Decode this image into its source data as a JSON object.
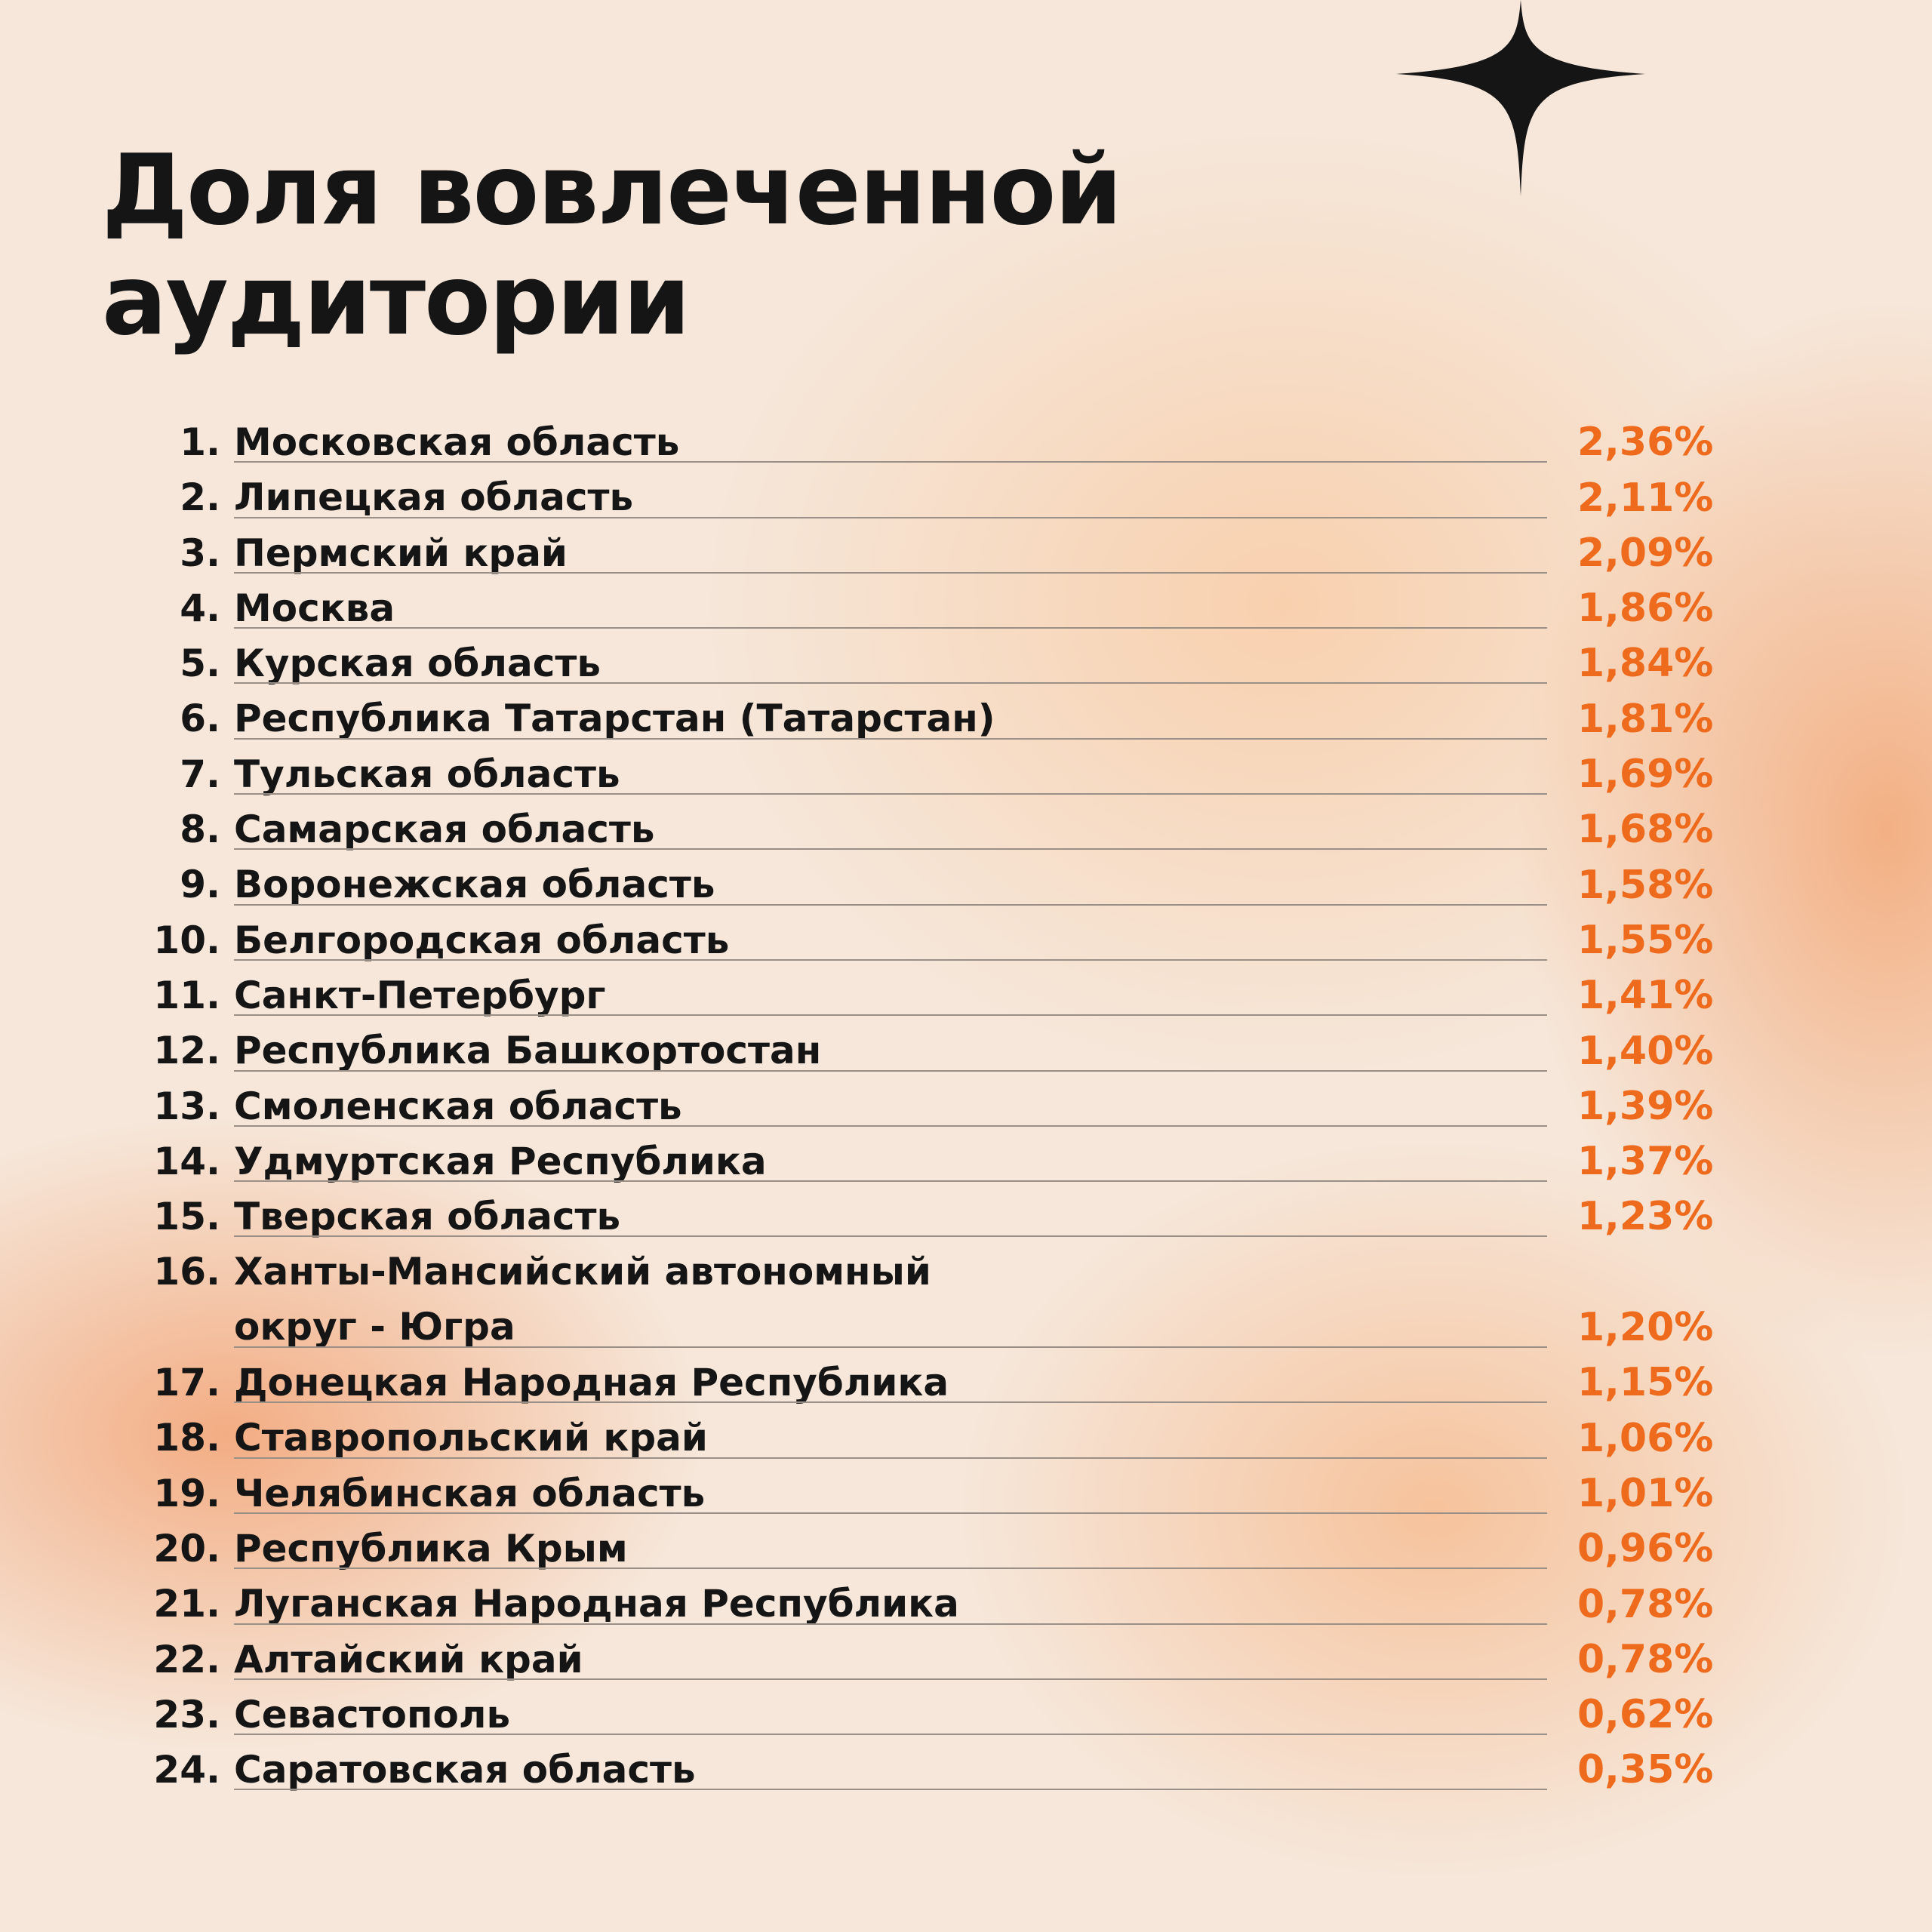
{
  "title": {
    "line1": "Доля вовлеченной",
    "line2": "аудитории"
  },
  "colors": {
    "accent": "#ee6a1c",
    "text": "#151515",
    "background": "#f6e7da"
  },
  "decoration": {
    "icon": "four-point-star-icon"
  },
  "items": [
    {
      "rank": "1.",
      "name": "Московская область",
      "value": "2,36%"
    },
    {
      "rank": "2.",
      "name": "Липецкая область",
      "value": "2,11%"
    },
    {
      "rank": "3.",
      "name": "Пермский край",
      "value": "2,09%"
    },
    {
      "rank": "4.",
      "name": "Москва",
      "value": "1,86%"
    },
    {
      "rank": "5.",
      "name": "Курская область",
      "value": "1,84%"
    },
    {
      "rank": "6.",
      "name": "Республика Татарстан (Татарстан)",
      "value": "1,81%"
    },
    {
      "rank": "7.",
      "name": "Тульская область",
      "value": "1,69%"
    },
    {
      "rank": "8.",
      "name": "Самарская область",
      "value": "1,68%"
    },
    {
      "rank": "9.",
      "name": "Воронежская область",
      "value": "1,58%"
    },
    {
      "rank": "10.",
      "name": "Белгородская область",
      "value": "1,55%"
    },
    {
      "rank": "11.",
      "name": "Санкт-Петербург",
      "value": "1,41%"
    },
    {
      "rank": "12.",
      "name": "Республика Башкортостан",
      "value": "1,40%"
    },
    {
      "rank": "13.",
      "name": "Смоленская область",
      "value": "1,39%"
    },
    {
      "rank": "14.",
      "name": "Удмуртская Республика",
      "value": "1,37%"
    },
    {
      "rank": "15.",
      "name": "Тверская область",
      "value": "1,23%"
    },
    {
      "rank": "16.",
      "name": "Ханты-Мансийский автономный",
      "name2": "округ - Югра",
      "value": "1,20%"
    },
    {
      "rank": "17.",
      "name": "Донецкая Народная Республика",
      "value": "1,15%"
    },
    {
      "rank": "18.",
      "name": "Ставропольский край",
      "value": "1,06%"
    },
    {
      "rank": "19.",
      "name": "Челябинская область",
      "value": "1,01%"
    },
    {
      "rank": "20.",
      "name": "Республика Крым",
      "value": "0,96%"
    },
    {
      "rank": "21.",
      "name": "Луганская Народная Республика",
      "value": "0,78%"
    },
    {
      "rank": "22.",
      "name": "Алтайский край",
      "value": "0,78%"
    },
    {
      "rank": "23.",
      "name": "Севастополь",
      "value": "0,62%"
    },
    {
      "rank": "24.",
      "name": "Саратовская область",
      "value": "0,35%"
    }
  ]
}
